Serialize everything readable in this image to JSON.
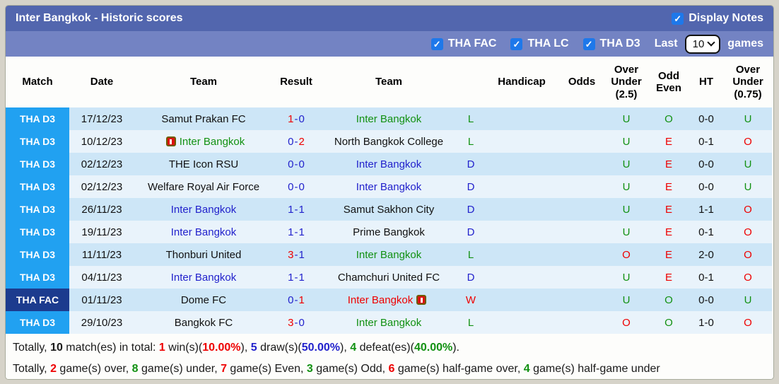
{
  "window": {
    "title": "Inter Bangkok - Historic scores",
    "display_notes_label": "Display Notes"
  },
  "filters": {
    "competitions": [
      "THA FAC",
      "THA LC",
      "THA D3"
    ],
    "last_label": "Last",
    "last_value": "10",
    "games_label": "games"
  },
  "colors": {
    "accent_titlebar": "#5266ae",
    "accent_filterbar": "#7383c3",
    "badge_d3": "#21a1f1",
    "badge_fac": "#1c3b8e",
    "row_odd": "#cde6f7",
    "row_even": "#e9f3fb",
    "win_red": "#ee0000",
    "draw_blue": "#2222cc",
    "loss_green": "#129112",
    "checkbox_blue": "#1e78ea"
  },
  "table": {
    "headers": [
      "Match",
      "Date",
      "Team",
      "Result",
      "Team",
      "",
      "Handicap",
      "Odds",
      "Over\nUnder\n(2.5)",
      "Odd\nEven",
      "HT",
      "Over\nUnder\n(0.75)"
    ],
    "rows": [
      {
        "league": "THA D3",
        "league_type": "d3",
        "date": "17/12/23",
        "home": {
          "name": "Samut Prakan FC",
          "color": "black"
        },
        "score": {
          "home": "1",
          "away": "0",
          "winner": "home"
        },
        "away": {
          "name": "Inter Bangkok",
          "color": "green"
        },
        "letter": {
          "text": "L",
          "color": "green"
        },
        "handicap": "",
        "odds": "",
        "ou25": {
          "text": "U",
          "color": "green"
        },
        "odd_even": {
          "text": "O",
          "color": "green"
        },
        "ht": "0-0",
        "ou075": {
          "text": "U",
          "color": "green"
        }
      },
      {
        "league": "THA D3",
        "league_type": "d3",
        "date": "10/12/23",
        "home": {
          "name": "Inter Bangkok",
          "color": "green",
          "card": "before"
        },
        "score": {
          "home": "0",
          "away": "2",
          "winner": "away"
        },
        "away": {
          "name": "North Bangkok College",
          "color": "black"
        },
        "letter": {
          "text": "L",
          "color": "green"
        },
        "handicap": "",
        "odds": "",
        "ou25": {
          "text": "U",
          "color": "green"
        },
        "odd_even": {
          "text": "E",
          "color": "red"
        },
        "ht": "0-1",
        "ou075": {
          "text": "O",
          "color": "red"
        }
      },
      {
        "league": "THA D3",
        "league_type": "d3",
        "date": "02/12/23",
        "home": {
          "name": "THE Icon RSU",
          "color": "black"
        },
        "score": {
          "home": "0",
          "away": "0",
          "winner": "draw"
        },
        "away": {
          "name": "Inter Bangkok",
          "color": "blue"
        },
        "letter": {
          "text": "D",
          "color": "blue"
        },
        "handicap": "",
        "odds": "",
        "ou25": {
          "text": "U",
          "color": "green"
        },
        "odd_even": {
          "text": "E",
          "color": "red"
        },
        "ht": "0-0",
        "ou075": {
          "text": "U",
          "color": "green"
        }
      },
      {
        "league": "THA D3",
        "league_type": "d3",
        "date": "02/12/23",
        "home": {
          "name": "Welfare Royal Air Force",
          "color": "black"
        },
        "score": {
          "home": "0",
          "away": "0",
          "winner": "draw"
        },
        "away": {
          "name": "Inter Bangkok",
          "color": "blue"
        },
        "letter": {
          "text": "D",
          "color": "blue"
        },
        "handicap": "",
        "odds": "",
        "ou25": {
          "text": "U",
          "color": "green"
        },
        "odd_even": {
          "text": "E",
          "color": "red"
        },
        "ht": "0-0",
        "ou075": {
          "text": "U",
          "color": "green"
        }
      },
      {
        "league": "THA D3",
        "league_type": "d3",
        "date": "26/11/23",
        "home": {
          "name": "Inter Bangkok",
          "color": "blue"
        },
        "score": {
          "home": "1",
          "away": "1",
          "winner": "draw"
        },
        "away": {
          "name": "Samut Sakhon City",
          "color": "black"
        },
        "letter": {
          "text": "D",
          "color": "blue"
        },
        "handicap": "",
        "odds": "",
        "ou25": {
          "text": "U",
          "color": "green"
        },
        "odd_even": {
          "text": "E",
          "color": "red"
        },
        "ht": "1-1",
        "ou075": {
          "text": "O",
          "color": "red"
        }
      },
      {
        "league": "THA D3",
        "league_type": "d3",
        "date": "19/11/23",
        "home": {
          "name": "Inter Bangkok",
          "color": "blue"
        },
        "score": {
          "home": "1",
          "away": "1",
          "winner": "draw"
        },
        "away": {
          "name": "Prime Bangkok",
          "color": "black"
        },
        "letter": {
          "text": "D",
          "color": "blue"
        },
        "handicap": "",
        "odds": "",
        "ou25": {
          "text": "U",
          "color": "green"
        },
        "odd_even": {
          "text": "E",
          "color": "red"
        },
        "ht": "0-1",
        "ou075": {
          "text": "O",
          "color": "red"
        }
      },
      {
        "league": "THA D3",
        "league_type": "d3",
        "date": "11/11/23",
        "home": {
          "name": "Thonburi United",
          "color": "black"
        },
        "score": {
          "home": "3",
          "away": "1",
          "winner": "home"
        },
        "away": {
          "name": "Inter Bangkok",
          "color": "green"
        },
        "letter": {
          "text": "L",
          "color": "green"
        },
        "handicap": "",
        "odds": "",
        "ou25": {
          "text": "O",
          "color": "red"
        },
        "odd_even": {
          "text": "E",
          "color": "red"
        },
        "ht": "2-0",
        "ou075": {
          "text": "O",
          "color": "red"
        }
      },
      {
        "league": "THA D3",
        "league_type": "d3",
        "date": "04/11/23",
        "home": {
          "name": "Inter Bangkok",
          "color": "blue"
        },
        "score": {
          "home": "1",
          "away": "1",
          "winner": "draw"
        },
        "away": {
          "name": "Chamchuri United FC",
          "color": "black"
        },
        "letter": {
          "text": "D",
          "color": "blue"
        },
        "handicap": "",
        "odds": "",
        "ou25": {
          "text": "U",
          "color": "green"
        },
        "odd_even": {
          "text": "E",
          "color": "red"
        },
        "ht": "0-1",
        "ou075": {
          "text": "O",
          "color": "red"
        }
      },
      {
        "league": "THA FAC",
        "league_type": "fac",
        "date": "01/11/23",
        "home": {
          "name": "Dome FC",
          "color": "black"
        },
        "score": {
          "home": "0",
          "away": "1",
          "winner": "away"
        },
        "away": {
          "name": "Inter Bangkok",
          "color": "red",
          "card": "after"
        },
        "letter": {
          "text": "W",
          "color": "red"
        },
        "handicap": "",
        "odds": "",
        "ou25": {
          "text": "U",
          "color": "green"
        },
        "odd_even": {
          "text": "O",
          "color": "green"
        },
        "ht": "0-0",
        "ou075": {
          "text": "U",
          "color": "green"
        }
      },
      {
        "league": "THA D3",
        "league_type": "d3",
        "date": "29/10/23",
        "home": {
          "name": "Bangkok FC",
          "color": "black"
        },
        "score": {
          "home": "3",
          "away": "0",
          "winner": "home"
        },
        "away": {
          "name": "Inter Bangkok",
          "color": "green"
        },
        "letter": {
          "text": "L",
          "color": "green"
        },
        "handicap": "",
        "odds": "",
        "ou25": {
          "text": "O",
          "color": "red"
        },
        "odd_even": {
          "text": "O",
          "color": "green"
        },
        "ht": "1-0",
        "ou075": {
          "text": "O",
          "color": "red"
        }
      }
    ]
  },
  "summary": {
    "lines": [
      [
        {
          "t": "Totally, "
        },
        {
          "t": "10",
          "b": 1
        },
        {
          "t": " match(es) in total: "
        },
        {
          "t": "1",
          "c": "red",
          "b": 1
        },
        {
          "t": " win(s)("
        },
        {
          "t": "10.00%",
          "c": "red",
          "b": 1
        },
        {
          "t": "), "
        },
        {
          "t": "5",
          "c": "blue",
          "b": 1
        },
        {
          "t": " draw(s)("
        },
        {
          "t": "50.00%",
          "c": "blue",
          "b": 1
        },
        {
          "t": "), "
        },
        {
          "t": "4",
          "c": "green",
          "b": 1
        },
        {
          "t": " defeat(es)("
        },
        {
          "t": "40.00%",
          "c": "green",
          "b": 1
        },
        {
          "t": ")."
        }
      ],
      [
        {
          "t": "Totally, "
        },
        {
          "t": "2",
          "c": "red",
          "b": 1
        },
        {
          "t": " game(s) over, "
        },
        {
          "t": "8",
          "c": "green",
          "b": 1
        },
        {
          "t": " game(s) under, "
        },
        {
          "t": "7",
          "c": "red",
          "b": 1
        },
        {
          "t": " game(s) Even, "
        },
        {
          "t": "3",
          "c": "green",
          "b": 1
        },
        {
          "t": " game(s) Odd, "
        },
        {
          "t": "6",
          "c": "red",
          "b": 1
        },
        {
          "t": " game(s) half-game over, "
        },
        {
          "t": "4",
          "c": "green",
          "b": 1
        },
        {
          "t": " game(s) half-game under"
        }
      ]
    ]
  }
}
